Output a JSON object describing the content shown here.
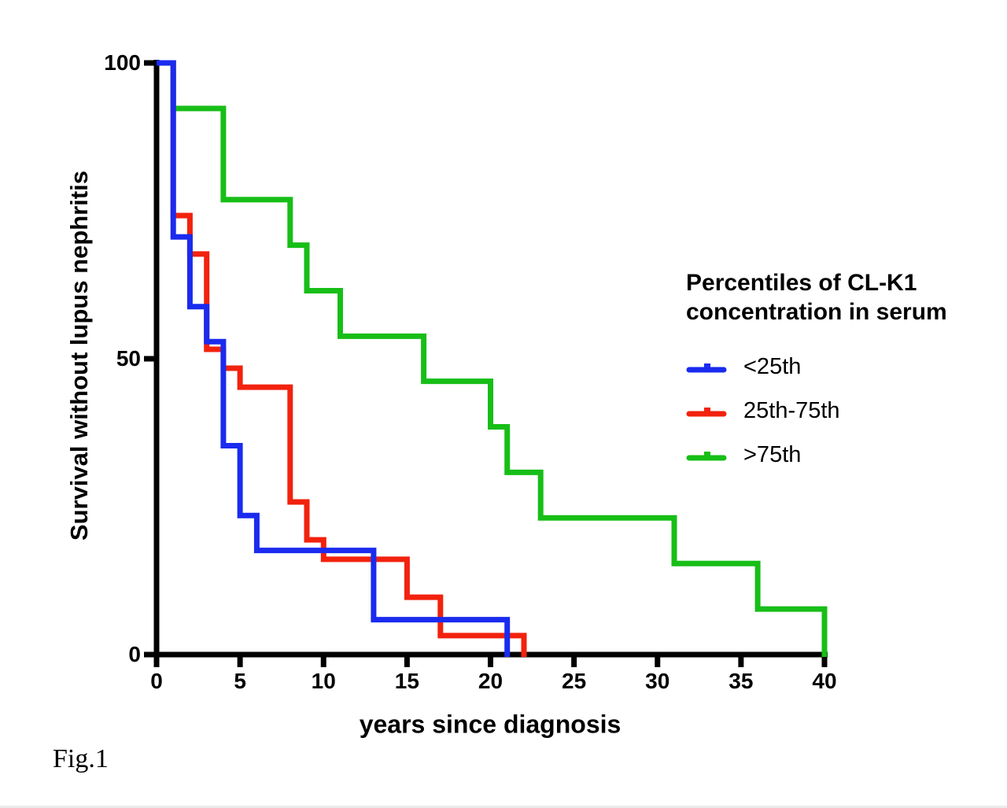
{
  "figure": {
    "caption": "Fig.1"
  },
  "chart_data": {
    "type": "line",
    "subtype": "kaplan-meier-step",
    "title": "",
    "xlabel": "years since diagnosis",
    "ylabel": "Survival without lupus nephritis",
    "xlim": [
      0,
      40
    ],
    "ylim": [
      0,
      100
    ],
    "x_ticks": [
      0,
      5,
      10,
      15,
      20,
      25,
      30,
      35,
      40
    ],
    "y_ticks": [
      0,
      50,
      100
    ],
    "grid": false,
    "axis_color": "#000000",
    "background_color": "#ffffff",
    "legend": {
      "position": "right",
      "title": [
        "Percentiles of CL-K1",
        "concentration in serum"
      ],
      "symbol": "line-with-censor-tick"
    },
    "series": [
      {
        "key": "lt25",
        "name": "<25th",
        "color": "#1A2BEF",
        "points": [
          [
            0,
            100
          ],
          [
            1,
            70.6
          ],
          [
            2,
            58.8
          ],
          [
            3,
            52.9
          ],
          [
            4,
            35.3
          ],
          [
            5,
            23.5
          ],
          [
            6,
            17.6
          ],
          [
            13,
            5.9
          ],
          [
            21,
            0
          ]
        ]
      },
      {
        "key": "p25-75",
        "name": "25th-75th",
        "color": "#F2220E",
        "points": [
          [
            0,
            100
          ],
          [
            1,
            74.2
          ],
          [
            2,
            67.7
          ],
          [
            3,
            51.6
          ],
          [
            4,
            48.4
          ],
          [
            5,
            45.2
          ],
          [
            8,
            25.8
          ],
          [
            9,
            19.4
          ],
          [
            10,
            16.1
          ],
          [
            15,
            9.7
          ],
          [
            17,
            3.2
          ],
          [
            22,
            0
          ]
        ]
      },
      {
        "key": "gt75",
        "name": ">75th",
        "color": "#17BE17",
        "points": [
          [
            0,
            100
          ],
          [
            1,
            92.3
          ],
          [
            4,
            76.9
          ],
          [
            8,
            69.2
          ],
          [
            9,
            61.5
          ],
          [
            11,
            53.8
          ],
          [
            16,
            46.2
          ],
          [
            20,
            38.5
          ],
          [
            21,
            30.8
          ],
          [
            23,
            23.1
          ],
          [
            31,
            15.4
          ],
          [
            36,
            7.7
          ],
          [
            40,
            0
          ]
        ]
      }
    ]
  }
}
